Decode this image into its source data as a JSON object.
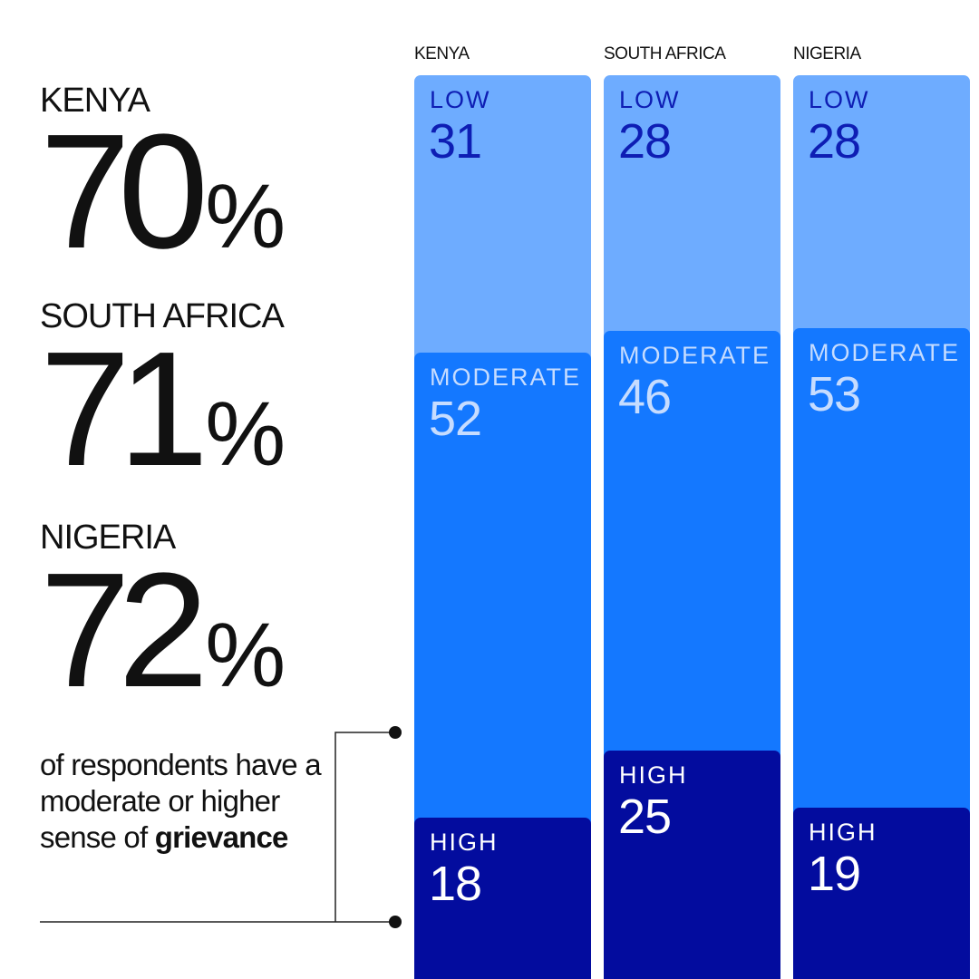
{
  "summary": [
    {
      "country": "KENYA",
      "value": "70",
      "unit": "%"
    },
    {
      "country": "SOUTH AFRICA",
      "value": "71",
      "unit": "%"
    },
    {
      "country": "NIGERIA",
      "value": "72",
      "unit": "%"
    }
  ],
  "caption": {
    "text": "of respondents have a moderate or higher sense of ",
    "emphasis": "grievance"
  },
  "colors": {
    "low": "#6eacff",
    "moderate": "#1478ff",
    "high": "#030c9e",
    "low_text": "#0e1eb4",
    "moderate_text": "#c6dcff",
    "high_text": "#ffffff"
  },
  "chart_data": {
    "type": "bar",
    "stacked": true,
    "categories": [
      "KENYA",
      "SOUTH AFRICA",
      "NIGERIA"
    ],
    "series": [
      {
        "name": "LOW",
        "values": [
          31,
          28,
          28
        ]
      },
      {
        "name": "MODERATE",
        "values": [
          52,
          46,
          53
        ]
      },
      {
        "name": "HIGH",
        "values": [
          18,
          25,
          19
        ]
      }
    ]
  }
}
